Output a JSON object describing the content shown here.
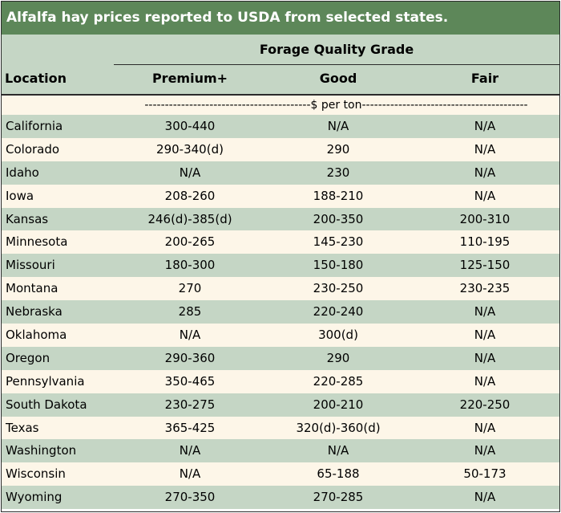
{
  "title": "Alfalfa hay prices reported to USDA from selected states.",
  "header": {
    "group_heading": "Forage Quality Grade",
    "location_label": "Location",
    "columns": [
      "Premium+",
      "Good",
      "Fair"
    ]
  },
  "units": "-----------------------------------------$ per ton-----------------------------------------",
  "rows": [
    {
      "location": "California",
      "premium": "300-440",
      "good": "N/A",
      "fair": "N/A"
    },
    {
      "location": "Colorado",
      "premium": "290-340(d)",
      "good": "290",
      "fair": "N/A"
    },
    {
      "location": "Idaho",
      "premium": "N/A",
      "good": "230",
      "fair": "N/A"
    },
    {
      "location": "Iowa",
      "premium": "208-260",
      "good": "188-210",
      "fair": "N/A"
    },
    {
      "location": "Kansas",
      "premium": "246(d)-385(d)",
      "good": "200-350",
      "fair": "200-310"
    },
    {
      "location": "Minnesota",
      "premium": "200-265",
      "good": "145-230",
      "fair": "110-195"
    },
    {
      "location": "Missouri",
      "premium": "180-300",
      "good": "150-180",
      "fair": "125-150"
    },
    {
      "location": "Montana",
      "premium": "270",
      "good": "230-250",
      "fair": "230-235"
    },
    {
      "location": "Nebraska",
      "premium": "285",
      "good": "220-240",
      "fair": "N/A"
    },
    {
      "location": "Oklahoma",
      "premium": "N/A",
      "good": "300(d)",
      "fair": "N/A"
    },
    {
      "location": "Oregon",
      "premium": "290-360",
      "good": "290",
      "fair": "N/A"
    },
    {
      "location": "Pennsylvania",
      "premium": "350-465",
      "good": "220-285",
      "fair": "N/A"
    },
    {
      "location": "South Dakota",
      "premium": "230-275",
      "good": "200-210",
      "fair": "220-250"
    },
    {
      "location": "Texas",
      "premium": "365-425",
      "good": "320(d)-360(d)",
      "fair": "N/A"
    },
    {
      "location": "Washington",
      "premium": "N/A",
      "good": "N/A",
      "fair": "N/A"
    },
    {
      "location": "Wisconsin",
      "premium": "N/A",
      "good": "65-188",
      "fair": "50-173"
    },
    {
      "location": "Wyoming",
      "premium": "270-350",
      "good": "270-285",
      "fair": "N/A"
    }
  ],
  "colors": {
    "title_bar": "#5d8759",
    "band_green": "#c5d6c5",
    "band_cream": "#fdf6e8",
    "rule": "#2b2b2b"
  }
}
